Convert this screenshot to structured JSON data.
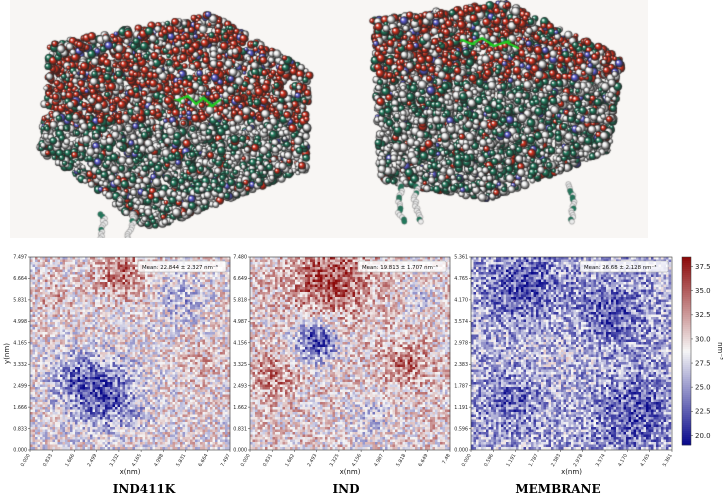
{
  "colors": {
    "background_render": "#f8f6f4",
    "atom_oxygen": "#d42f1c",
    "atom_carbon": "#1f7a5c",
    "atom_hydrogen": "#ebebeb",
    "atom_nitrogen": "#5a5ad0",
    "peptide": "#22cc22",
    "map_low": "#0a0a8c",
    "map_mid": "#f6f6f6",
    "map_high": "#8c0a0a"
  },
  "chart_data": [
    {
      "type": "heatmap",
      "caption": "IND411K",
      "xlabel": "x(nm)",
      "ylabel": "y(nm)",
      "xticks": [
        "0.000",
        "0.833",
        "1.666",
        "2.499",
        "3.332",
        "4.165",
        "4.998",
        "5.831",
        "6.664",
        "7.497"
      ],
      "yticks": [
        "0.000",
        "0.833",
        "1.666",
        "2.499",
        "3.332",
        "4.165",
        "4.998",
        "5.831",
        "6.664",
        "7.497"
      ],
      "xlim": [
        0,
        7.497
      ],
      "ylim": [
        0,
        7.497
      ],
      "mean_label": "Mean: 22.844 ± 2.327  nm⁻³"
    },
    {
      "type": "heatmap",
      "caption": "IND",
      "xlabel": "x(nm)",
      "ylabel": "",
      "xticks": [
        "0.000",
        "0.831",
        "1.662",
        "2.493",
        "3.325",
        "4.156",
        "4.987",
        "5.818",
        "6.649",
        "7.48"
      ],
      "yticks": [
        "0.000",
        "0.831",
        "1.662",
        "2.493",
        "3.325",
        "4.156",
        "4.987",
        "5.818",
        "6.649",
        "7.480"
      ],
      "xlim": [
        0,
        7.48
      ],
      "ylim": [
        0,
        7.48
      ],
      "mean_label": "Mean: 19.813 ± 1.707  nm⁻³"
    },
    {
      "type": "heatmap",
      "caption": "MEMBRANE",
      "xlabel": "x(nm)",
      "ylabel": "",
      "xticks": [
        "0.000",
        "0.596",
        "1.191",
        "1.787",
        "2.383",
        "2.978",
        "3.574",
        "4.170",
        "4.765",
        "5.361"
      ],
      "yticks": [
        "0.000",
        "0.596",
        "1.191",
        "1.787",
        "2.383",
        "2.978",
        "3.574",
        "4.170",
        "4.765",
        "5.361"
      ],
      "xlim": [
        0,
        5.361
      ],
      "ylim": [
        0,
        5.361
      ],
      "mean_label": "Mean: 26.68 ± 2.128  nm⁻³"
    }
  ],
  "colorbar": {
    "label": "nm⁻³",
    "ticks": [
      "37.5",
      "35.0",
      "32.5",
      "30.0",
      "27.5",
      "25.0",
      "22.5",
      "20.0"
    ],
    "range": [
      19.0,
      38.5
    ]
  }
}
